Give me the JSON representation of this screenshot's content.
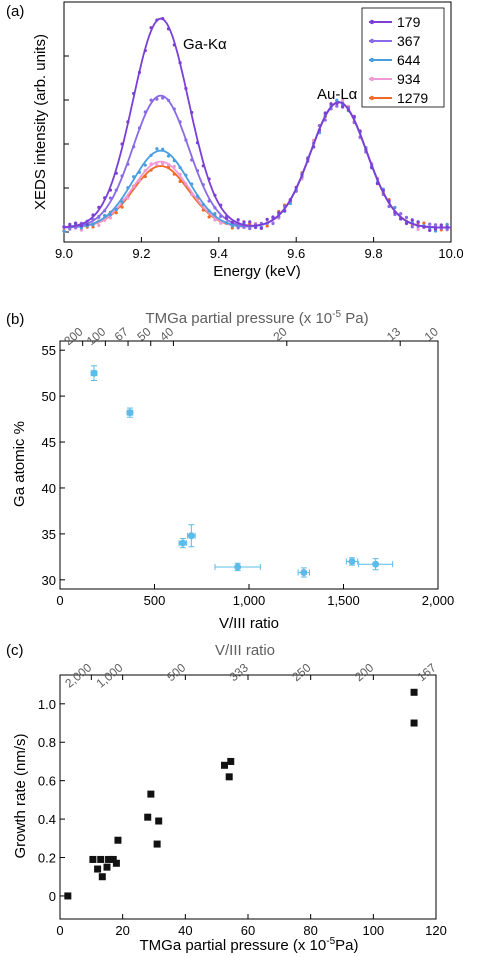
{
  "chart_data": [
    {
      "panel": "(a)",
      "type": "line",
      "xlabel": "Energy (keV)",
      "ylabel": "XEDS intensity (arb. units)",
      "xlim": [
        9.0,
        10.0
      ],
      "ylim": [
        0,
        1.0
      ],
      "xticks": [
        9.0,
        9.2,
        9.4,
        9.6,
        9.8,
        10.0
      ],
      "xtick_labels": [
        "9.0",
        "9.2",
        "9.4",
        "9.6",
        "9.8",
        "10.0"
      ],
      "annotations": [
        "Ga-Kα",
        "Au-Lα"
      ],
      "legend_position": "top-right",
      "series": [
        {
          "name": "179",
          "color": "#7b3fd6",
          "ga_peak": 0.95
        },
        {
          "name": "367",
          "color": "#8a6ae6",
          "ga_peak": 0.6
        },
        {
          "name": "644",
          "color": "#4a9ee0",
          "ga_peak": 0.35
        },
        {
          "name": "934",
          "color": "#ee9ad6",
          "ga_peak": 0.3
        },
        {
          "name": "1279",
          "color": "#f06a2a",
          "ga_peak": 0.28
        }
      ],
      "au_peak": 0.57,
      "ga_center": 9.25,
      "au_center": 9.71
    },
    {
      "panel": "(b)",
      "type": "scatter",
      "xlabel": "V/III ratio",
      "ylabel": "Ga atomic %",
      "top_xlabel": "TMGa partial pressure (x 10⁻⁵ Pa)",
      "top_label_main": "TMGa partial pressure (x 10",
      "top_label_exp": "-5",
      "top_label_end": " Pa)",
      "xlim": [
        0,
        2000
      ],
      "ylim": [
        29,
        56
      ],
      "xticks": [
        0,
        500,
        1000,
        1500,
        2000
      ],
      "xtick_labels": [
        "0",
        "500",
        "1,000",
        "1,500",
        "2,000"
      ],
      "yticks": [
        30,
        35,
        40,
        45,
        50,
        55
      ],
      "top_ticks": [
        {
          "label": "200",
          "v": 120
        },
        {
          "label": "100",
          "v": 240
        },
        {
          "label": "67",
          "v": 360
        },
        {
          "label": "50",
          "v": 480
        },
        {
          "label": "40",
          "v": 600
        },
        {
          "label": "20",
          "v": 1200
        },
        {
          "label": "13",
          "v": 1800
        },
        {
          "label": "10",
          "v": 2400
        }
      ],
      "color": "#5bbcea",
      "points": [
        {
          "x": 180,
          "y": 52.5,
          "xerr": 15,
          "yerr": 0.8
        },
        {
          "x": 370,
          "y": 48.2,
          "xerr": 15,
          "yerr": 0.5
        },
        {
          "x": 650,
          "y": 34.0,
          "xerr": 20,
          "yerr": 0.5
        },
        {
          "x": 695,
          "y": 34.8,
          "xerr": 20,
          "yerr": 1.2
        },
        {
          "x": 940,
          "y": 31.4,
          "xerr": 120,
          "yerr": 0.4
        },
        {
          "x": 1290,
          "y": 30.8,
          "xerr": 30,
          "yerr": 0.5
        },
        {
          "x": 1545,
          "y": 32.0,
          "xerr": 30,
          "yerr": 0.4
        },
        {
          "x": 1670,
          "y": 31.7,
          "xerr": 90,
          "yerr": 0.6
        }
      ]
    },
    {
      "panel": "(c)",
      "type": "scatter",
      "xlabel_main": "TMGa partial pressure (x 10",
      "xlabel_exp": "-5",
      "xlabel_end": "Pa)",
      "ylabel": "Growth rate (nm/s)",
      "top_xlabel": "V/III ratio",
      "xlim": [
        0,
        120
      ],
      "ylim": [
        -0.12,
        1.15
      ],
      "xticks": [
        0,
        20,
        40,
        60,
        80,
        100,
        120
      ],
      "xtick_labels": [
        "0",
        "20",
        "40",
        "60",
        "80",
        "100",
        "120"
      ],
      "yticks": [
        0,
        0.2,
        0.4,
        0.6,
        0.8,
        1.0
      ],
      "ytick_labels": [
        "0",
        "0.2",
        "0.4",
        "0.6",
        "0.8",
        "1.0"
      ],
      "top_ticks": [
        {
          "label": "2,000",
          "v": 10
        },
        {
          "label": "1,000",
          "v": 20
        },
        {
          "label": "500",
          "v": 40
        },
        {
          "label": "333",
          "v": 60
        },
        {
          "label": "250",
          "v": 80
        },
        {
          "label": "200",
          "v": 100
        },
        {
          "label": "167",
          "v": 120
        }
      ],
      "color": "#111111",
      "points": [
        {
          "x": 2.5,
          "y": 0.0
        },
        {
          "x": 10.5,
          "y": 0.19
        },
        {
          "x": 12,
          "y": 0.14
        },
        {
          "x": 13,
          "y": 0.19
        },
        {
          "x": 13.5,
          "y": 0.1
        },
        {
          "x": 15,
          "y": 0.15
        },
        {
          "x": 15.5,
          "y": 0.19
        },
        {
          "x": 17,
          "y": 0.19
        },
        {
          "x": 18,
          "y": 0.17
        },
        {
          "x": 18.5,
          "y": 0.29
        },
        {
          "x": 28,
          "y": 0.41
        },
        {
          "x": 29,
          "y": 0.53
        },
        {
          "x": 31,
          "y": 0.27
        },
        {
          "x": 31.5,
          "y": 0.39
        },
        {
          "x": 52.5,
          "y": 0.68
        },
        {
          "x": 54,
          "y": 0.62
        },
        {
          "x": 54.5,
          "y": 0.7
        },
        {
          "x": 113,
          "y": 1.06
        },
        {
          "x": 113,
          "y": 0.9
        }
      ]
    }
  ]
}
